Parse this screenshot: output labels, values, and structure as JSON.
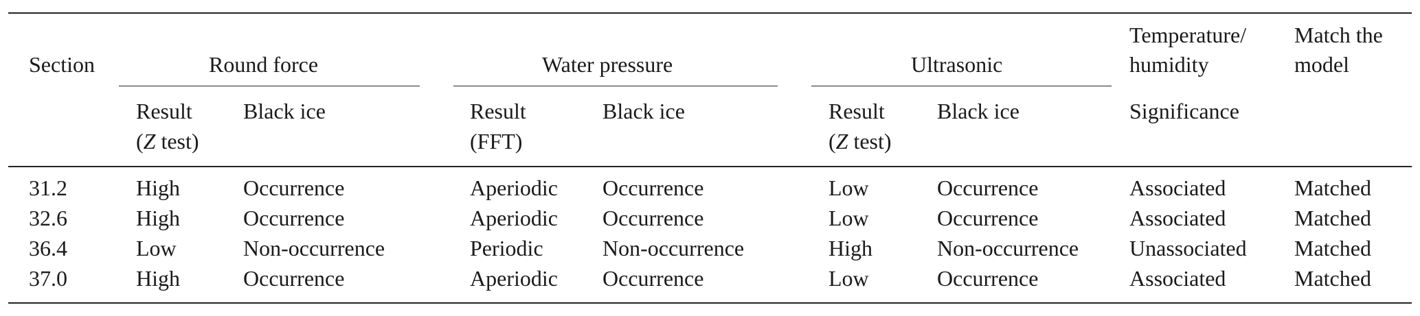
{
  "table": {
    "groups": {
      "section": "Section",
      "round_force": "Round force",
      "water_pressure": "Water pressure",
      "ultrasonic": "Ultrasonic",
      "temp_line1": "Temperature/",
      "temp_line2": "humidity",
      "match_line1": "Match the",
      "match_line2": "model"
    },
    "subheaders": {
      "result": "Result",
      "z_open": "(",
      "z_var": "Z",
      "z_close": " test)",
      "fft": "(FFT)",
      "black_ice": "Black ice",
      "significance": "Significance"
    },
    "rows": [
      {
        "section": "31.2",
        "rf_result": "High",
        "rf_ice": "Occurrence",
        "wp_result": "Aperiodic",
        "wp_ice": "Occurrence",
        "us_result": "Low",
        "us_ice": "Occurrence",
        "significance": "Associated",
        "match": "Matched"
      },
      {
        "section": "32.6",
        "rf_result": "High",
        "rf_ice": "Occurrence",
        "wp_result": "Aperiodic",
        "wp_ice": "Occurrence",
        "us_result": "Low",
        "us_ice": "Occurrence",
        "significance": "Associated",
        "match": "Matched"
      },
      {
        "section": "36.4",
        "rf_result": "Low",
        "rf_ice": "Non-occurrence",
        "wp_result": "Periodic",
        "wp_ice": "Non-occurrence",
        "us_result": "High",
        "us_ice": "Non-occurrence",
        "significance": "Unassociated",
        "match": "Matched"
      },
      {
        "section": "37.0",
        "rf_result": "High",
        "rf_ice": "Occurrence",
        "wp_result": "Aperiodic",
        "wp_ice": "Occurrence",
        "us_result": "Low",
        "us_ice": "Occurrence",
        "significance": "Associated",
        "match": "Matched"
      }
    ]
  }
}
